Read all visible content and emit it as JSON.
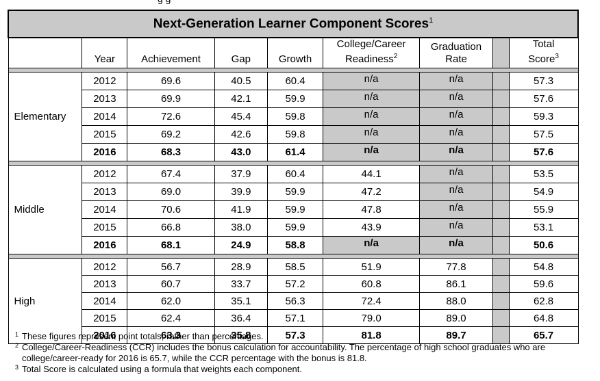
{
  "top_fragment": "g      g",
  "table": {
    "title": "Next-Generation Learner Component Scores",
    "title_sup": "1",
    "headers": {
      "year": "Year",
      "achievement": "Achievement",
      "gap": "Gap",
      "growth": "Growth",
      "ccr_line1": "College/Career",
      "ccr_line2": "Readiness",
      "ccr_sup": "2",
      "grad_line1": "Graduation",
      "grad_line2": "Rate",
      "total_line1": "Total",
      "total_line2": "Score",
      "total_sup": "3"
    },
    "groups": [
      {
        "level": "Elementary",
        "rows": [
          {
            "year": "2012",
            "achievement": "69.6",
            "gap": "40.5",
            "growth": "60.4",
            "ccr": "n/a",
            "grad": "n/a",
            "total": "57.3"
          },
          {
            "year": "2013",
            "achievement": "69.9",
            "gap": "42.1",
            "growth": "59.9",
            "ccr": "n/a",
            "grad": "n/a",
            "total": "57.6"
          },
          {
            "year": "2014",
            "achievement": "72.6",
            "gap": "45.4",
            "growth": "59.8",
            "ccr": "n/a",
            "grad": "n/a",
            "total": "59.3"
          },
          {
            "year": "2015",
            "achievement": "69.2",
            "gap": "42.6",
            "growth": "59.8",
            "ccr": "n/a",
            "grad": "n/a",
            "total": "57.5"
          },
          {
            "year": "2016",
            "achievement": "68.3",
            "gap": "43.0",
            "growth": "61.4",
            "ccr": "n/a",
            "grad": "n/a",
            "total": "57.6"
          }
        ]
      },
      {
        "level": "Middle",
        "rows": [
          {
            "year": "2012",
            "achievement": "67.4",
            "gap": "37.9",
            "growth": "60.4",
            "ccr": "44.1",
            "grad": "n/a",
            "total": "53.5"
          },
          {
            "year": "2013",
            "achievement": "69.0",
            "gap": "39.9",
            "growth": "59.9",
            "ccr": "47.2",
            "grad": "n/a",
            "total": "54.9"
          },
          {
            "year": "2014",
            "achievement": "70.6",
            "gap": "41.9",
            "growth": "59.9",
            "ccr": "47.8",
            "grad": "n/a",
            "total": "55.9"
          },
          {
            "year": "2015",
            "achievement": "66.8",
            "gap": "38.0",
            "growth": "59.9",
            "ccr": "43.9",
            "grad": "n/a",
            "total": "53.1"
          },
          {
            "year": "2016",
            "achievement": "68.1",
            "gap": "24.9",
            "growth": "58.8",
            "ccr": "n/a",
            "grad": "n/a",
            "total": "50.6"
          }
        ]
      },
      {
        "level": "High",
        "rows": [
          {
            "year": "2012",
            "achievement": "56.7",
            "gap": "28.9",
            "growth": "58.5",
            "ccr": "51.9",
            "grad": "77.8",
            "total": "54.8"
          },
          {
            "year": "2013",
            "achievement": "60.7",
            "gap": "33.7",
            "growth": "57.2",
            "ccr": "60.8",
            "grad": "86.1",
            "total": "59.6"
          },
          {
            "year": "2014",
            "achievement": "62.0",
            "gap": "35.1",
            "growth": "56.3",
            "ccr": "72.4",
            "grad": "88.0",
            "total": "62.8"
          },
          {
            "year": "2015",
            "achievement": "62.4",
            "gap": "36.4",
            "growth": "57.1",
            "ccr": "79.0",
            "grad": "89.0",
            "total": "64.8"
          },
          {
            "year": "2016",
            "achievement": "63.3",
            "gap": "35.8",
            "growth": "57.3",
            "ccr": "81.8",
            "grad": "89.7",
            "total": "65.7"
          }
        ]
      }
    ]
  },
  "footnotes": [
    {
      "mark": "1",
      "text": "These figures represent point totals, rather than percentages."
    },
    {
      "mark": "2",
      "text": "College/Career-Readiness (CCR) includes the bonus calculation for accountability. The percentage of high school graduates who are college/career-ready for 2016 is 65.7, while the CCR percentage with the bonus is 81.8."
    },
    {
      "mark": "3",
      "text": "Total Score is calculated using a formula that weights each component."
    }
  ],
  "colors": {
    "shade": "#c9c9c9",
    "border": "#000000"
  }
}
